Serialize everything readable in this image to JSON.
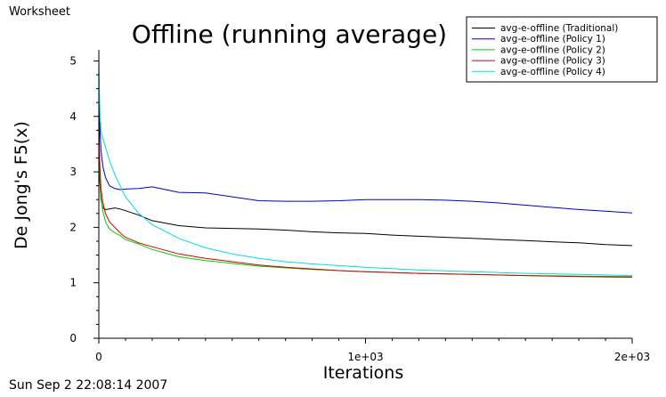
{
  "window": {
    "worksheet_label": "Worksheet",
    "timestamp": "Sun Sep  2 22:08:14 2007"
  },
  "chart_data": {
    "type": "line",
    "title": "Offline (running average)",
    "xlabel": "Iterations",
    "ylabel": "De Jong's F5(x)",
    "xlim": [
      0,
      2000
    ],
    "ylim": [
      0,
      5.2
    ],
    "xticks": [
      {
        "value": 0,
        "label": "0"
      },
      {
        "value": 1000,
        "label": "1e+03"
      },
      {
        "value": 2000,
        "label": "2e+03"
      }
    ],
    "yticks": [
      {
        "value": 0,
        "label": "0"
      },
      {
        "value": 1,
        "label": "1"
      },
      {
        "value": 2,
        "label": "2"
      },
      {
        "value": 3,
        "label": "3"
      },
      {
        "value": 4,
        "label": "4"
      },
      {
        "value": 5,
        "label": "5"
      }
    ],
    "legend_position": "top-right",
    "grid": false,
    "series": [
      {
        "name": "avg-e-offline (Traditional)",
        "color": "#000000",
        "x": [
          0,
          3,
          8,
          15,
          25,
          40,
          60,
          80,
          100,
          150,
          200,
          300,
          400,
          500,
          600,
          700,
          800,
          900,
          1000,
          1100,
          1200,
          1300,
          1400,
          1500,
          1600,
          1700,
          1800,
          1900,
          2000
        ],
        "y": [
          4.4,
          2.9,
          2.5,
          2.35,
          2.32,
          2.33,
          2.35,
          2.33,
          2.3,
          2.22,
          2.12,
          2.03,
          1.99,
          1.98,
          1.97,
          1.95,
          1.92,
          1.9,
          1.89,
          1.86,
          1.84,
          1.82,
          1.8,
          1.78,
          1.76,
          1.74,
          1.72,
          1.69,
          1.67
        ]
      },
      {
        "name": "avg-e-offline (Policy 1)",
        "color": "#0000c8",
        "x": [
          0,
          3,
          8,
          15,
          25,
          40,
          60,
          80,
          100,
          150,
          200,
          250,
          300,
          400,
          500,
          600,
          700,
          800,
          900,
          1000,
          1100,
          1200,
          1300,
          1400,
          1500,
          1600,
          1700,
          1800,
          1900,
          2000
        ],
        "y": [
          4.4,
          3.9,
          3.4,
          3.1,
          2.9,
          2.75,
          2.7,
          2.68,
          2.69,
          2.7,
          2.73,
          2.68,
          2.63,
          2.62,
          2.55,
          2.48,
          2.47,
          2.47,
          2.48,
          2.5,
          2.5,
          2.5,
          2.49,
          2.47,
          2.44,
          2.4,
          2.36,
          2.32,
          2.29,
          2.26
        ]
      },
      {
        "name": "avg-e-offline (Policy 2)",
        "color": "#00cc00",
        "x": [
          0,
          3,
          8,
          15,
          25,
          40,
          60,
          80,
          100,
          150,
          200,
          300,
          400,
          500,
          600,
          700,
          800,
          900,
          1000,
          1200,
          1400,
          1600,
          1800,
          2000
        ],
        "y": [
          3.7,
          3.0,
          2.55,
          2.3,
          2.1,
          1.97,
          1.9,
          1.85,
          1.78,
          1.7,
          1.6,
          1.47,
          1.4,
          1.35,
          1.3,
          1.27,
          1.24,
          1.22,
          1.2,
          1.17,
          1.15,
          1.13,
          1.12,
          1.11
        ]
      },
      {
        "name": "avg-e-offline (Policy 3)",
        "color": "#cc0000",
        "x": [
          0,
          3,
          8,
          15,
          25,
          40,
          60,
          80,
          100,
          150,
          200,
          300,
          400,
          500,
          600,
          700,
          800,
          900,
          1000,
          1200,
          1400,
          1600,
          1800,
          2000
        ],
        "y": [
          3.9,
          3.2,
          2.7,
          2.45,
          2.25,
          2.1,
          2.0,
          1.9,
          1.82,
          1.72,
          1.65,
          1.52,
          1.44,
          1.38,
          1.32,
          1.28,
          1.25,
          1.22,
          1.2,
          1.17,
          1.15,
          1.13,
          1.11,
          1.1
        ]
      },
      {
        "name": "avg-e-offline (Policy 4)",
        "color": "#00dddd",
        "x": [
          0,
          2,
          5,
          10,
          15,
          25,
          40,
          60,
          80,
          100,
          150,
          200,
          300,
          400,
          500,
          600,
          700,
          800,
          900,
          1000,
          1200,
          1400,
          1600,
          1800,
          2000
        ],
        "y": [
          5.15,
          4.5,
          3.95,
          3.7,
          3.6,
          3.45,
          3.2,
          2.95,
          2.75,
          2.55,
          2.25,
          2.05,
          1.8,
          1.63,
          1.52,
          1.44,
          1.38,
          1.34,
          1.31,
          1.28,
          1.23,
          1.2,
          1.17,
          1.15,
          1.13
        ]
      }
    ]
  }
}
